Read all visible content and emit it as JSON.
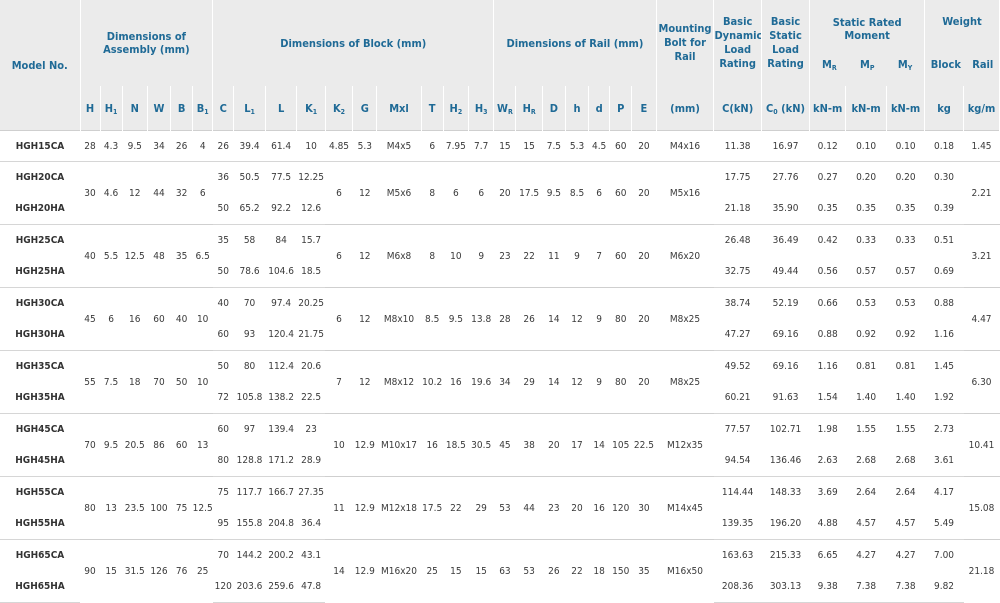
{
  "header": {
    "model_no": "Model No.",
    "dim_assembly": "Dimensions of Assembly (mm)",
    "dim_block": "Dimensions of Block (mm)",
    "dim_rail": "Dimensions of Rail (mm)",
    "mounting_bolt": "Mounting Bolt for Rail",
    "basic_dynamic": "Basic Dynamic Load Rating",
    "basic_static": "Basic Static Load Rating",
    "static_moment": "Static Rated Moment",
    "weight": "Weight",
    "mr": "M",
    "mr_sub": "R",
    "mp": "M",
    "mp_sub": "P",
    "my": "M",
    "my_sub": "Y",
    "block": "Block",
    "rail": "Rail",
    "units": {
      "bolt": "(mm)",
      "c": "C(kN)",
      "c0": "C",
      "c0_sub": "0",
      "c0_rest": "(kN)",
      "mr": "kN-m",
      "mp": "kN-m",
      "my": "kN-m",
      "block": "kg",
      "rail": "kg/m"
    },
    "cols": {
      "H": "H",
      "H1": "H",
      "H1_sub": "1",
      "N": "N",
      "W": "W",
      "B": "B",
      "B1": "B",
      "B1_sub": "1",
      "C": "C",
      "L1": "L",
      "L1_sub": "1",
      "L": "L",
      "K1": "K",
      "K1_sub": "1",
      "K2": "K",
      "K2_sub": "2",
      "G": "G",
      "Mxl": "Mxl",
      "T": "T",
      "H2": "H",
      "H2_sub": "2",
      "H3": "H",
      "H3_sub": "3",
      "WR": "W",
      "WR_sub": "R",
      "HR": "H",
      "HR_sub": "R",
      "D": "D",
      "h": "h",
      "d": "d",
      "P": "P",
      "E": "E"
    }
  },
  "rows": [
    {
      "id": "15",
      "common": {
        "H": "28",
        "H1": "4.3",
        "N": "9.5",
        "W": "34",
        "B": "26",
        "B1": "4",
        "K2": "4.85",
        "G": "5.3",
        "Mxl": "M4x5",
        "T": "6",
        "H2": "7.95",
        "H3": "7.7",
        "WR": "15",
        "HR": "15",
        "D": "7.5",
        "h": "5.3",
        "d": "4.5",
        "P": "60",
        "E": "20",
        "bolt": "M4x16",
        "rail_w": "1.45"
      },
      "variants": [
        {
          "model": "HGH15CA",
          "C": "26",
          "L1": "39.4",
          "L": "61.4",
          "K1": "10",
          "Cdyn": "11.38",
          "C0": "16.97",
          "MR": "0.12",
          "MP": "0.10",
          "MY": "0.10",
          "block": "0.18"
        }
      ]
    },
    {
      "id": "20",
      "common": {
        "H": "30",
        "H1": "4.6",
        "N": "12",
        "W": "44",
        "B": "32",
        "B1": "6",
        "K2": "6",
        "G": "12",
        "Mxl": "M5x6",
        "T": "8",
        "H2": "6",
        "H3": "6",
        "WR": "20",
        "HR": "17.5",
        "D": "9.5",
        "h": "8.5",
        "d": "6",
        "P": "60",
        "E": "20",
        "bolt": "M5x16",
        "rail_w": "2.21"
      },
      "variants": [
        {
          "model": "HGH20CA",
          "C": "36",
          "L1": "50.5",
          "L": "77.5",
          "K1": "12.25",
          "Cdyn": "17.75",
          "C0": "27.76",
          "MR": "0.27",
          "MP": "0.20",
          "MY": "0.20",
          "block": "0.30"
        },
        {
          "model": "HGH20HA",
          "C": "50",
          "L1": "65.2",
          "L": "92.2",
          "K1": "12.6",
          "Cdyn": "21.18",
          "C0": "35.90",
          "MR": "0.35",
          "MP": "0.35",
          "MY": "0.35",
          "block": "0.39"
        }
      ]
    },
    {
      "id": "25",
      "common": {
        "H": "40",
        "H1": "5.5",
        "N": "12.5",
        "W": "48",
        "B": "35",
        "B1": "6.5",
        "K2": "6",
        "G": "12",
        "Mxl": "M6x8",
        "T": "8",
        "H2": "10",
        "H3": "9",
        "WR": "23",
        "HR": "22",
        "D": "11",
        "h": "9",
        "d": "7",
        "P": "60",
        "E": "20",
        "bolt": "M6x20",
        "rail_w": "3.21"
      },
      "variants": [
        {
          "model": "HGH25CA",
          "C": "35",
          "L1": "58",
          "L": "84",
          "K1": "15.7",
          "Cdyn": "26.48",
          "C0": "36.49",
          "MR": "0.42",
          "MP": "0.33",
          "MY": "0.33",
          "block": "0.51"
        },
        {
          "model": "HGH25HA",
          "C": "50",
          "L1": "78.6",
          "L": "104.6",
          "K1": "18.5",
          "Cdyn": "32.75",
          "C0": "49.44",
          "MR": "0.56",
          "MP": "0.57",
          "MY": "0.57",
          "block": "0.69"
        }
      ]
    },
    {
      "id": "30",
      "common": {
        "H": "45",
        "H1": "6",
        "N": "16",
        "W": "60",
        "B": "40",
        "B1": "10",
        "K2": "6",
        "G": "12",
        "Mxl": "M8x10",
        "T": "8.5",
        "H2": "9.5",
        "H3": "13.8",
        "WR": "28",
        "HR": "26",
        "D": "14",
        "h": "12",
        "d": "9",
        "P": "80",
        "E": "20",
        "bolt": "M8x25",
        "rail_w": "4.47"
      },
      "variants": [
        {
          "model": "HGH30CA",
          "C": "40",
          "L1": "70",
          "L": "97.4",
          "K1": "20.25",
          "Cdyn": "38.74",
          "C0": "52.19",
          "MR": "0.66",
          "MP": "0.53",
          "MY": "0.53",
          "block": "0.88"
        },
        {
          "model": "HGH30HA",
          "C": "60",
          "L1": "93",
          "L": "120.4",
          "K1": "21.75",
          "Cdyn": "47.27",
          "C0": "69.16",
          "MR": "0.88",
          "MP": "0.92",
          "MY": "0.92",
          "block": "1.16"
        }
      ]
    },
    {
      "id": "35",
      "common": {
        "H": "55",
        "H1": "7.5",
        "N": "18",
        "W": "70",
        "B": "50",
        "B1": "10",
        "K2": "7",
        "G": "12",
        "Mxl": "M8x12",
        "T": "10.2",
        "H2": "16",
        "H3": "19.6",
        "WR": "34",
        "HR": "29",
        "D": "14",
        "h": "12",
        "d": "9",
        "P": "80",
        "E": "20",
        "bolt": "M8x25",
        "rail_w": "6.30"
      },
      "variants": [
        {
          "model": "HGH35CA",
          "C": "50",
          "L1": "80",
          "L": "112.4",
          "K1": "20.6",
          "Cdyn": "49.52",
          "C0": "69.16",
          "MR": "1.16",
          "MP": "0.81",
          "MY": "0.81",
          "block": "1.45"
        },
        {
          "model": "HGH35HA",
          "C": "72",
          "L1": "105.8",
          "L": "138.2",
          "K1": "22.5",
          "Cdyn": "60.21",
          "C0": "91.63",
          "MR": "1.54",
          "MP": "1.40",
          "MY": "1.40",
          "block": "1.92"
        }
      ]
    },
    {
      "id": "45",
      "common": {
        "H": "70",
        "H1": "9.5",
        "N": "20.5",
        "W": "86",
        "B": "60",
        "B1": "13",
        "K2": "10",
        "G": "12.9",
        "Mxl": "M10x17",
        "T": "16",
        "H2": "18.5",
        "H3": "30.5",
        "WR": "45",
        "HR": "38",
        "D": "20",
        "h": "17",
        "d": "14",
        "P": "105",
        "E": "22.5",
        "bolt": "M12x35",
        "rail_w": "10.41"
      },
      "variants": [
        {
          "model": "HGH45CA",
          "C": "60",
          "L1": "97",
          "L": "139.4",
          "K1": "23",
          "Cdyn": "77.57",
          "C0": "102.71",
          "MR": "1.98",
          "MP": "1.55",
          "MY": "1.55",
          "block": "2.73"
        },
        {
          "model": "HGH45HA",
          "C": "80",
          "L1": "128.8",
          "L": "171.2",
          "K1": "28.9",
          "Cdyn": "94.54",
          "C0": "136.46",
          "MR": "2.63",
          "MP": "2.68",
          "MY": "2.68",
          "block": "3.61"
        }
      ]
    },
    {
      "id": "55",
      "common": {
        "H": "80",
        "H1": "13",
        "N": "23.5",
        "W": "100",
        "B": "75",
        "B1": "12.5",
        "K2": "11",
        "G": "12.9",
        "Mxl": "M12x18",
        "T": "17.5",
        "H2": "22",
        "H3": "29",
        "WR": "53",
        "HR": "44",
        "D": "23",
        "h": "20",
        "d": "16",
        "P": "120",
        "E": "30",
        "bolt": "M14x45",
        "rail_w": "15.08"
      },
      "variants": [
        {
          "model": "HGH55CA",
          "C": "75",
          "L1": "117.7",
          "L": "166.7",
          "K1": "27.35",
          "Cdyn": "114.44",
          "C0": "148.33",
          "MR": "3.69",
          "MP": "2.64",
          "MY": "2.64",
          "block": "4.17"
        },
        {
          "model": "HGH55HA",
          "C": "95",
          "L1": "155.8",
          "L": "204.8",
          "K1": "36.4",
          "Cdyn": "139.35",
          "C0": "196.20",
          "MR": "4.88",
          "MP": "4.57",
          "MY": "4.57",
          "block": "5.49"
        }
      ]
    },
    {
      "id": "65",
      "common": {
        "H": "90",
        "H1": "15",
        "N": "31.5",
        "W": "126",
        "B": "76",
        "B1": "25",
        "K2": "14",
        "G": "12.9",
        "Mxl": "M16x20",
        "T": "25",
        "H2": "15",
        "H3": "15",
        "WR": "63",
        "HR": "53",
        "D": "26",
        "h": "22",
        "d": "18",
        "P": "150",
        "E": "35",
        "bolt": "M16x50",
        "rail_w": "21.18"
      },
      "variants": [
        {
          "model": "HGH65CA",
          "C": "70",
          "L1": "144.2",
          "L": "200.2",
          "K1": "43.1",
          "Cdyn": "163.63",
          "C0": "215.33",
          "MR": "6.65",
          "MP": "4.27",
          "MY": "4.27",
          "block": "7.00"
        },
        {
          "model": "HGH65HA",
          "C": "120",
          "L1": "203.6",
          "L": "259.6",
          "K1": "47.8",
          "Cdyn": "208.36",
          "C0": "303.13",
          "MR": "9.38",
          "MP": "7.38",
          "MY": "7.38",
          "block": "9.82"
        }
      ]
    }
  ]
}
